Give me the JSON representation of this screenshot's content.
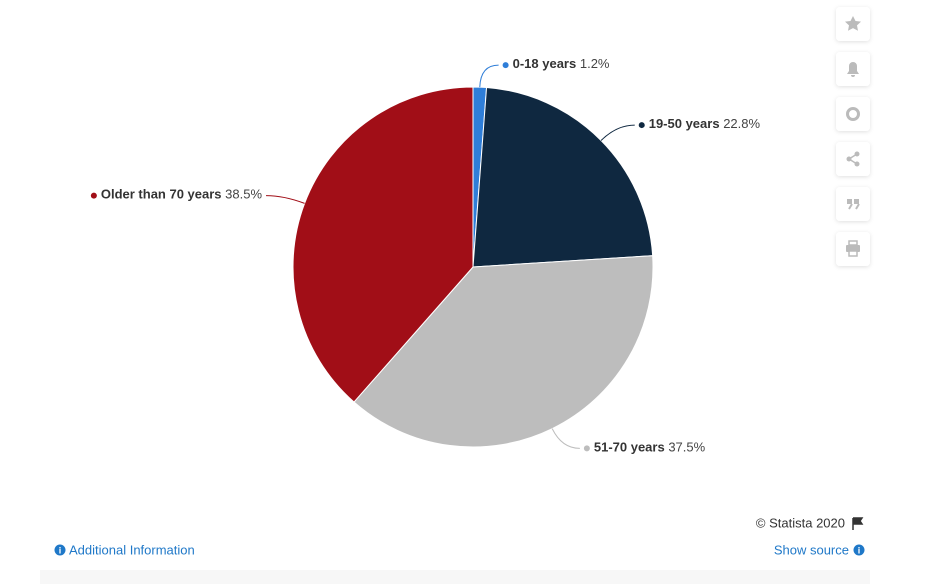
{
  "chart_data": {
    "type": "pie",
    "categories": [
      "0-18 years",
      "19-50 years",
      "51-70 years",
      "Older than 70 years"
    ],
    "values": [
      1.2,
      22.8,
      37.5,
      38.5
    ],
    "value_labels": [
      "1.2%",
      "22.8%",
      "37.5%",
      "38.5%"
    ],
    "colors": [
      "#2f7ed8",
      "#0f2840",
      "#bdbdbd",
      "#a10e17"
    ]
  },
  "footer": {
    "copyright": "© Statista 2020",
    "additional_info": "Additional Information",
    "show_source": "Show source"
  }
}
